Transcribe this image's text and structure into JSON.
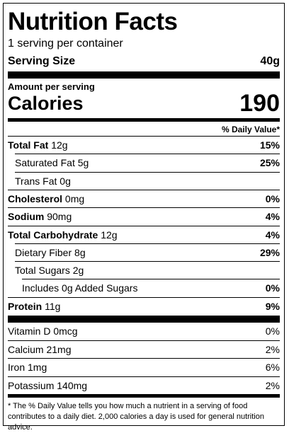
{
  "title": "Nutrition Facts",
  "servings": "1 serving per container",
  "serving_size": {
    "label": "Serving Size",
    "value": "40g"
  },
  "amount_per_serving": "Amount per serving",
  "calories": {
    "label": "Calories",
    "value": "190"
  },
  "daily_value_header": "% Daily Value*",
  "nutrients": [
    {
      "name": "Total Fat",
      "amount": "12g",
      "dv": "15%",
      "sub": [
        {
          "name": "Saturated Fat",
          "amount": "5g",
          "dv": "25%"
        },
        {
          "name": "Trans Fat",
          "amount": "0g"
        }
      ]
    },
    {
      "name": "Cholesterol",
      "amount": "0mg",
      "dv": "0%"
    },
    {
      "name": "Sodium",
      "amount": "90mg",
      "dv": "4%"
    },
    {
      "name": "Total Carbohydrate",
      "amount": "12g",
      "dv": "4%",
      "sub": [
        {
          "name": "Dietary Fiber",
          "amount": "8g",
          "dv": "29%"
        },
        {
          "name": "Total Sugars",
          "amount": "2g",
          "sub": [
            {
              "text": "Includes 0g Added Sugars",
              "dv": "0%"
            }
          ]
        }
      ]
    },
    {
      "name": "Protein",
      "amount": "11g",
      "dv": "9%"
    }
  ],
  "vitamins": [
    {
      "name": "Vitamin D",
      "amount": "0mcg",
      "dv": "0%"
    },
    {
      "name": "Calcium",
      "amount": "21mg",
      "dv": "2%"
    },
    {
      "name": "Iron",
      "amount": "1mg",
      "dv": "6%"
    },
    {
      "name": "Potassium",
      "amount": "140mg",
      "dv": "2%"
    }
  ],
  "footnote": "* The % Daily Value tells you how much a nutrient in a serving of food contributes to a daily diet. 2,000 calories a day is used for general nutrition advice."
}
